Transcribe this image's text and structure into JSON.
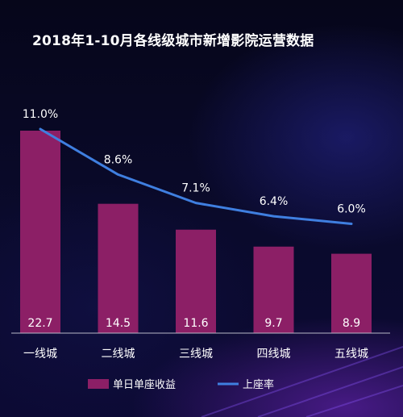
{
  "chart_data": {
    "type": "bar",
    "title": "2018年1-10月各线级城市新增影院运营数据",
    "categories": [
      "一线城",
      "二线城",
      "三线城",
      "四线城",
      "五线城"
    ],
    "series": [
      {
        "name": "单日单座收益",
        "type": "bar",
        "values": [
          22.7,
          14.5,
          11.6,
          9.7,
          8.9
        ],
        "labels": [
          "22.7",
          "14.5",
          "11.6",
          "9.7",
          "8.9"
        ],
        "color": "#8c1f66"
      },
      {
        "name": "上座率",
        "type": "line",
        "values": [
          11.0,
          8.6,
          7.1,
          6.4,
          6.0
        ],
        "labels": [
          "11.0%",
          "8.6%",
          "7.1%",
          "6.4%",
          "6.0%"
        ],
        "color": "#3f7fe0"
      }
    ],
    "legend_position": "bottom-center",
    "grid": false,
    "background": "#0a0a2a"
  }
}
